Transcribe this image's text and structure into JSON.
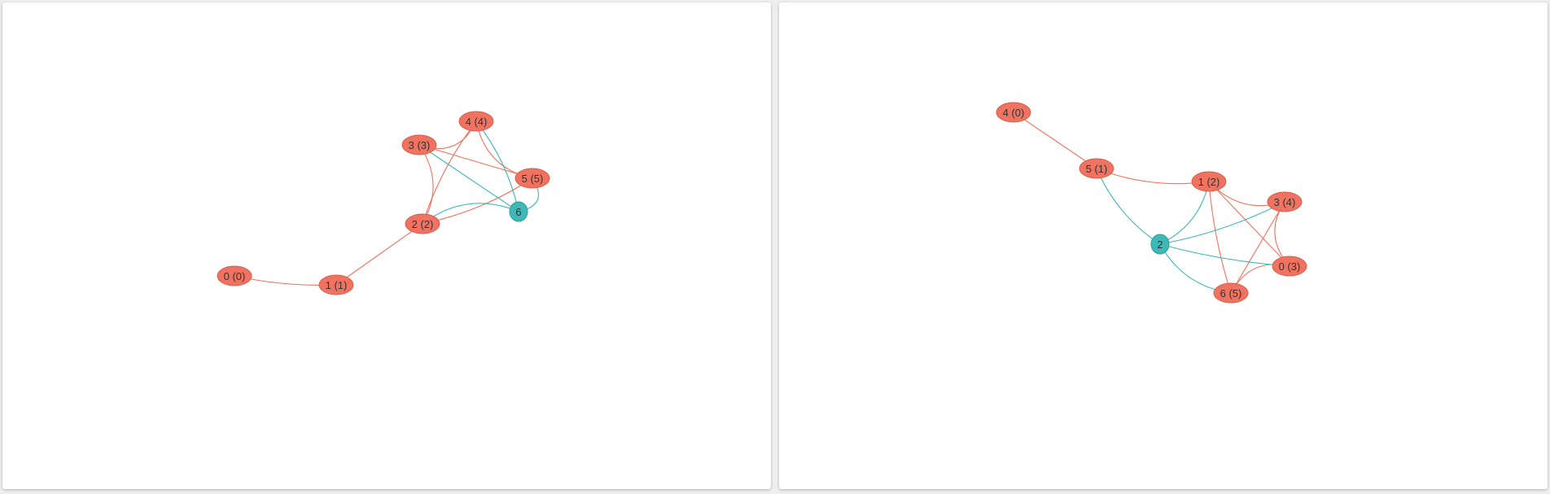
{
  "colors": {
    "node_red": "#f07361",
    "node_teal": "#3fb8b8",
    "edge_red": "#f07361",
    "edge_teal": "#3fb8b8"
  },
  "graphs": [
    {
      "nodes": [
        {
          "id": "n0",
          "label": "0 (0)",
          "kind": "red"
        },
        {
          "id": "n1",
          "label": "1 (1)",
          "kind": "red"
        },
        {
          "id": "n2",
          "label": "2 (2)",
          "kind": "red"
        },
        {
          "id": "n3",
          "label": "3 (3)",
          "kind": "red"
        },
        {
          "id": "n4",
          "label": "4 (4)",
          "kind": "red"
        },
        {
          "id": "n5",
          "label": "5 (5)",
          "kind": "red"
        },
        {
          "id": "n6",
          "label": "6",
          "kind": "teal"
        }
      ],
      "edges": [
        {
          "from": "n0",
          "to": "n1",
          "kind": "red"
        },
        {
          "from": "n1",
          "to": "n2",
          "kind": "red"
        },
        {
          "from": "n2",
          "to": "n3",
          "kind": "red"
        },
        {
          "from": "n2",
          "to": "n4",
          "kind": "red"
        },
        {
          "from": "n2",
          "to": "n5",
          "kind": "red"
        },
        {
          "from": "n3",
          "to": "n4",
          "kind": "red"
        },
        {
          "from": "n3",
          "to": "n5",
          "kind": "red"
        },
        {
          "from": "n4",
          "to": "n5",
          "kind": "red"
        },
        {
          "from": "n6",
          "to": "n3",
          "kind": "teal"
        },
        {
          "from": "n6",
          "to": "n4",
          "kind": "teal"
        },
        {
          "from": "n6",
          "to": "n5",
          "kind": "teal"
        },
        {
          "from": "n6",
          "to": "n2",
          "kind": "teal"
        }
      ]
    },
    {
      "nodes": [
        {
          "id": "n4",
          "label": "4 (0)",
          "kind": "red"
        },
        {
          "id": "n5",
          "label": "5 (1)",
          "kind": "red"
        },
        {
          "id": "n1",
          "label": "1 (2)",
          "kind": "red"
        },
        {
          "id": "n3",
          "label": "3 (4)",
          "kind": "red"
        },
        {
          "id": "n0",
          "label": "0 (3)",
          "kind": "red"
        },
        {
          "id": "n6",
          "label": "6 (5)",
          "kind": "red"
        },
        {
          "id": "n2",
          "label": "2",
          "kind": "teal"
        }
      ],
      "edges": [
        {
          "from": "n4",
          "to": "n5",
          "kind": "red"
        },
        {
          "from": "n5",
          "to": "n1",
          "kind": "red"
        },
        {
          "from": "n1",
          "to": "n3",
          "kind": "red"
        },
        {
          "from": "n1",
          "to": "n0",
          "kind": "red"
        },
        {
          "from": "n1",
          "to": "n6",
          "kind": "red"
        },
        {
          "from": "n3",
          "to": "n0",
          "kind": "red"
        },
        {
          "from": "n3",
          "to": "n6",
          "kind": "red"
        },
        {
          "from": "n0",
          "to": "n6",
          "kind": "red"
        },
        {
          "from": "n2",
          "to": "n5",
          "kind": "teal"
        },
        {
          "from": "n2",
          "to": "n1",
          "kind": "teal"
        },
        {
          "from": "n2",
          "to": "n3",
          "kind": "teal"
        },
        {
          "from": "n2",
          "to": "n0",
          "kind": "teal"
        },
        {
          "from": "n2",
          "to": "n6",
          "kind": "teal"
        }
      ]
    }
  ]
}
